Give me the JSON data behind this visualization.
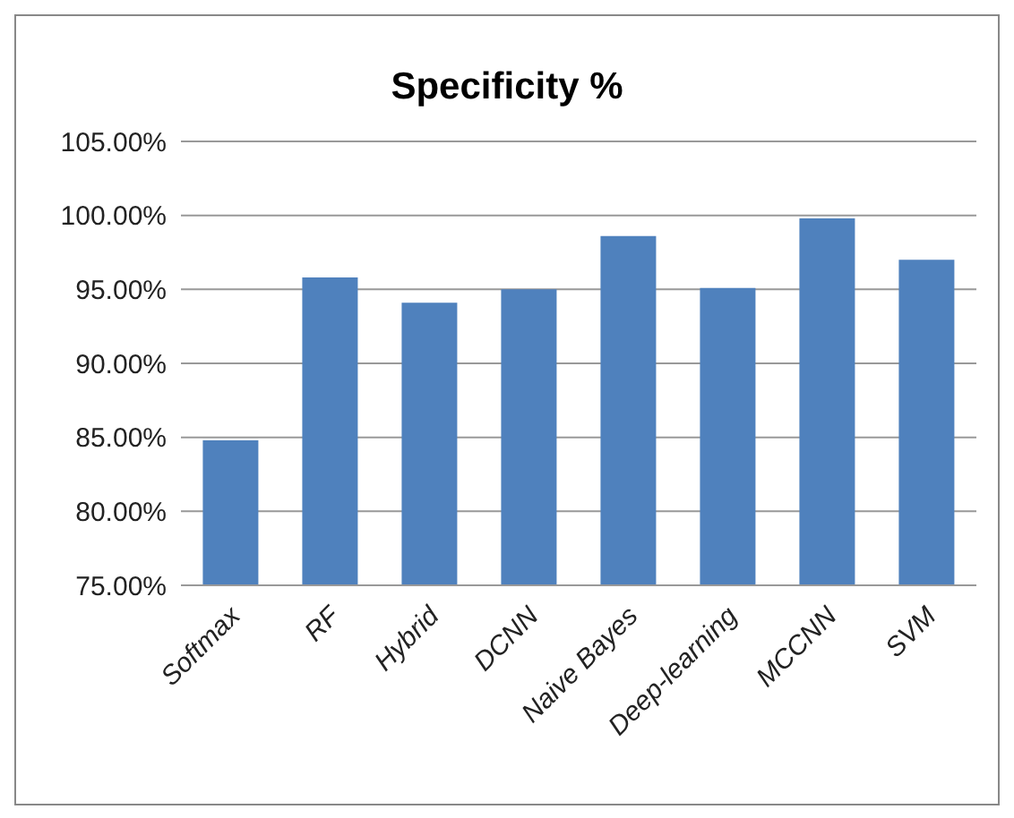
{
  "chart_data": {
    "type": "bar",
    "title": "Specificity %",
    "categories": [
      "Softmax",
      "RF",
      "Hybrid",
      "DCNN",
      "Naive Bayes",
      "Deep-learning",
      "MCCNN",
      "SVM"
    ],
    "values": [
      84.8,
      95.8,
      94.1,
      95.0,
      98.6,
      95.1,
      99.8,
      97.0
    ],
    "color": "#4f81bd",
    "ylim": [
      75,
      105
    ],
    "yticks": [
      {
        "value": 75,
        "label": "75.00%"
      },
      {
        "value": 80,
        "label": "80.00%"
      },
      {
        "value": 85,
        "label": "85.00%"
      },
      {
        "value": 90,
        "label": "90.00%"
      },
      {
        "value": 95,
        "label": "95.00%"
      },
      {
        "value": 100,
        "label": "100.00%"
      },
      {
        "value": 105,
        "label": "105.00%"
      }
    ],
    "grid": "y",
    "legend": false
  }
}
